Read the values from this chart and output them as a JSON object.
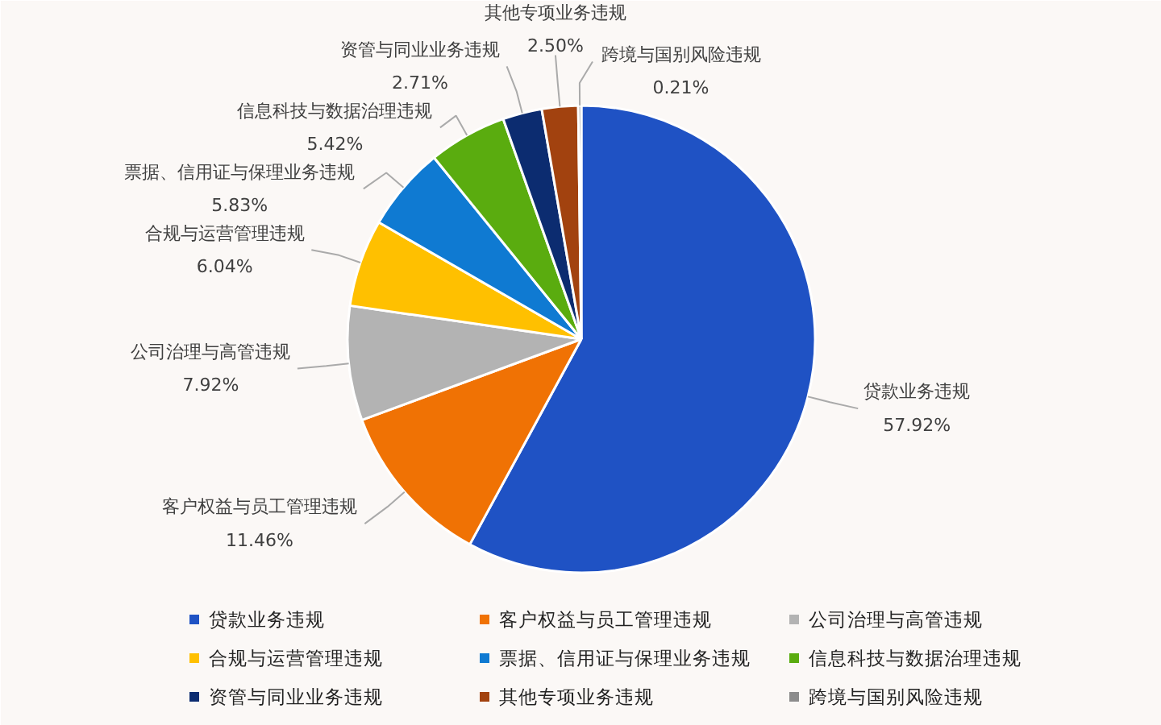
{
  "chart_data": {
    "type": "pie",
    "categories": [
      "贷款业务违规",
      "客户权益与员工管理违规",
      "公司治理与高管违规",
      "合规与运营管理违规",
      "票据、信用证与保理业务违规",
      "信息科技与数据治理违规",
      "资管与同业业务违规",
      "其他专项业务违规",
      "跨境与国别风险违规"
    ],
    "values": [
      57.92,
      11.46,
      7.92,
      6.04,
      5.83,
      5.42,
      2.71,
      2.5,
      0.21
    ],
    "value_labels": [
      "57.92%",
      "11.46%",
      "7.92%",
      "6.04%",
      "5.83%",
      "5.42%",
      "2.71%",
      "2.50%",
      "0.21%"
    ],
    "colors": [
      "#1f52c4",
      "#f07204",
      "#b3b3b3",
      "#ffc000",
      "#0f7ad2",
      "#5aac0f",
      "#0c2c70",
      "#a2420f",
      "#8c8c8c"
    ],
    "legend": "bottom"
  }
}
